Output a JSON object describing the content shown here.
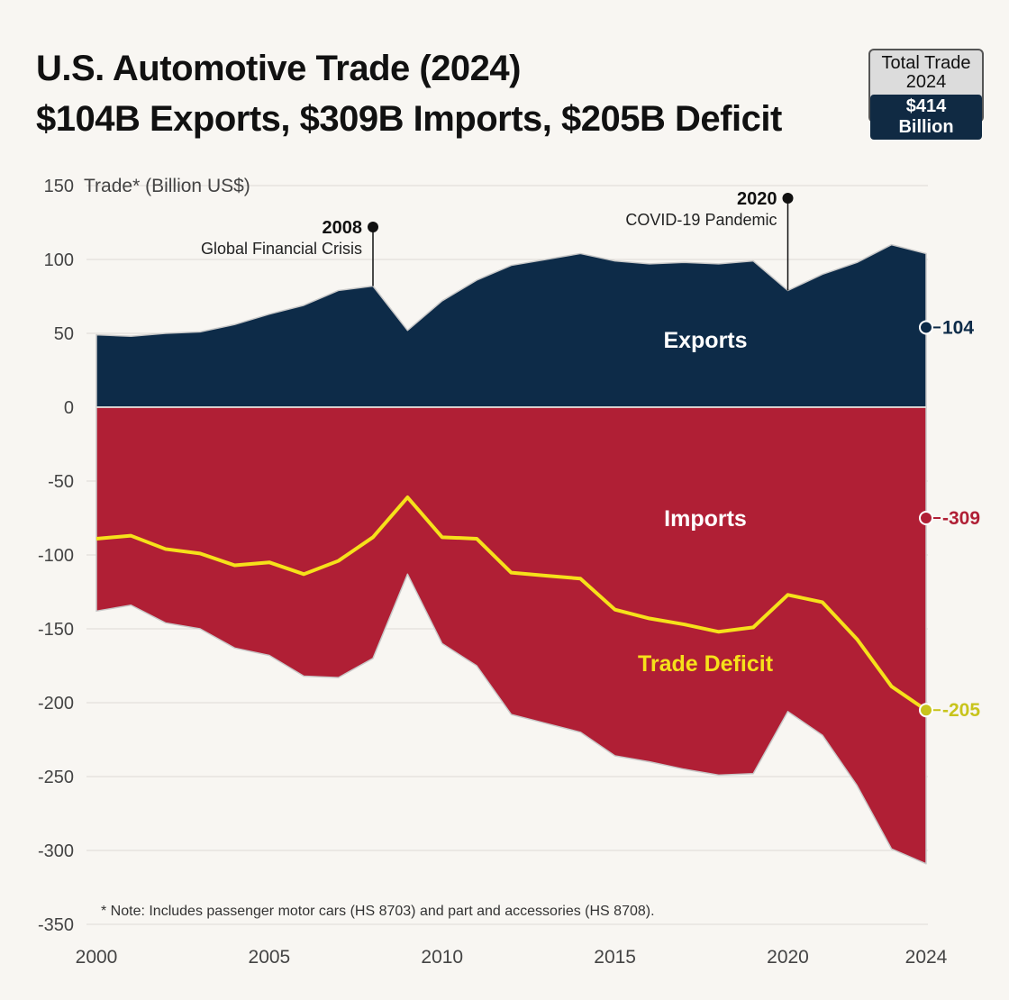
{
  "title": {
    "line1": "U.S. Automotive Trade (2024)",
    "line2": "$104B Exports, $309B Imports, $205B Deficit"
  },
  "total_box": {
    "label1": "Total Trade",
    "label2": "2024",
    "value": "$414 Billion"
  },
  "note": "* Note: Includes passenger motor cars (HS 8703) and part and accessories (HS 8708).",
  "annotations": [
    {
      "year_label": "2008",
      "text": "Global Financial Crisis",
      "x": 2008,
      "anchor_y": 122
    },
    {
      "year_label": "2020",
      "text": "COVID-19 Pandemic",
      "x": 2020,
      "anchor_y": 142
    }
  ],
  "colors": {
    "exports": "#0d2b48",
    "imports": "#b01f35",
    "deficit": "#f6e11a",
    "deficit_marker": "#c8c41c",
    "background": "#f8f6f2"
  },
  "chart_data": {
    "type": "area",
    "ylabel": "Trade* (Billion US$)",
    "ylim": [
      -350,
      150
    ],
    "xlim": [
      2000,
      2024
    ],
    "yticks": [
      150,
      100,
      50,
      0,
      -50,
      -100,
      -150,
      -200,
      -250,
      -300,
      -350
    ],
    "xticks": [
      2000,
      2005,
      2010,
      2015,
      2020,
      2024
    ],
    "grid": true,
    "x": [
      2000,
      2001,
      2002,
      2003,
      2004,
      2005,
      2006,
      2007,
      2008,
      2009,
      2010,
      2011,
      2012,
      2013,
      2014,
      2015,
      2016,
      2017,
      2018,
      2019,
      2020,
      2021,
      2022,
      2023,
      2024
    ],
    "series": [
      {
        "name": "Exports",
        "values": [
          49,
          48,
          50,
          51,
          56,
          63,
          69,
          79,
          82,
          52,
          72,
          86,
          96,
          100,
          104,
          99,
          97,
          98,
          97,
          99,
          79,
          90,
          98,
          110,
          104
        ],
        "end_label": "104"
      },
      {
        "name": "Imports",
        "values": [
          -138,
          -134,
          -146,
          -150,
          -163,
          -168,
          -182,
          -183,
          -170,
          -113,
          -160,
          -175,
          -208,
          -214,
          -220,
          -236,
          -240,
          -245,
          -249,
          -248,
          -206,
          -222,
          -256,
          -299,
          -309
        ],
        "end_label": "-309"
      },
      {
        "name": "Trade Deficit",
        "values": [
          -89,
          -87,
          -96,
          -99,
          -107,
          -105,
          -113,
          -104,
          -88,
          -61,
          -88,
          -89,
          -112,
          -114,
          -116,
          -137,
          -143,
          -147,
          -152,
          -149,
          -127,
          -132,
          -157,
          -189,
          -205
        ],
        "end_label": "-205"
      }
    ]
  }
}
